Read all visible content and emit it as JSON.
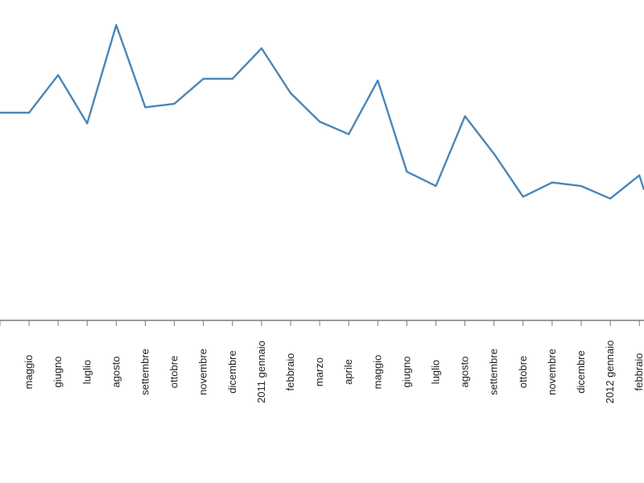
{
  "chart_data": {
    "type": "line",
    "title": "",
    "xlabel": "",
    "ylabel": "",
    "grid": false,
    "legend": "none",
    "categories": [
      "",
      "maggio",
      "giugno",
      "luglio",
      "agosto",
      "settembre",
      "ottobre",
      "novembre",
      "dicembre",
      "2011 gennaio",
      "febbraio",
      "marzo",
      "aprile",
      "maggio",
      "giugno",
      "luglio",
      "agosto",
      "settembre",
      "ottobre",
      "novembre",
      "dicembre",
      "2012 gennaio",
      "febbraio",
      ""
    ],
    "series": [
      {
        "color": "#4a86b8",
        "values": [
          null,
          0.67,
          0.88,
          0.61,
          1.16,
          0.7,
          0.72,
          0.86,
          0.86,
          1.03,
          0.78,
          0.62,
          0.55,
          0.85,
          0.34,
          0.26,
          0.65,
          0.44,
          0.2,
          0.28,
          0.26,
          0.19,
          0.32,
          null
        ]
      }
    ],
    "ylim": [
      -0.5,
      1.3
    ]
  }
}
